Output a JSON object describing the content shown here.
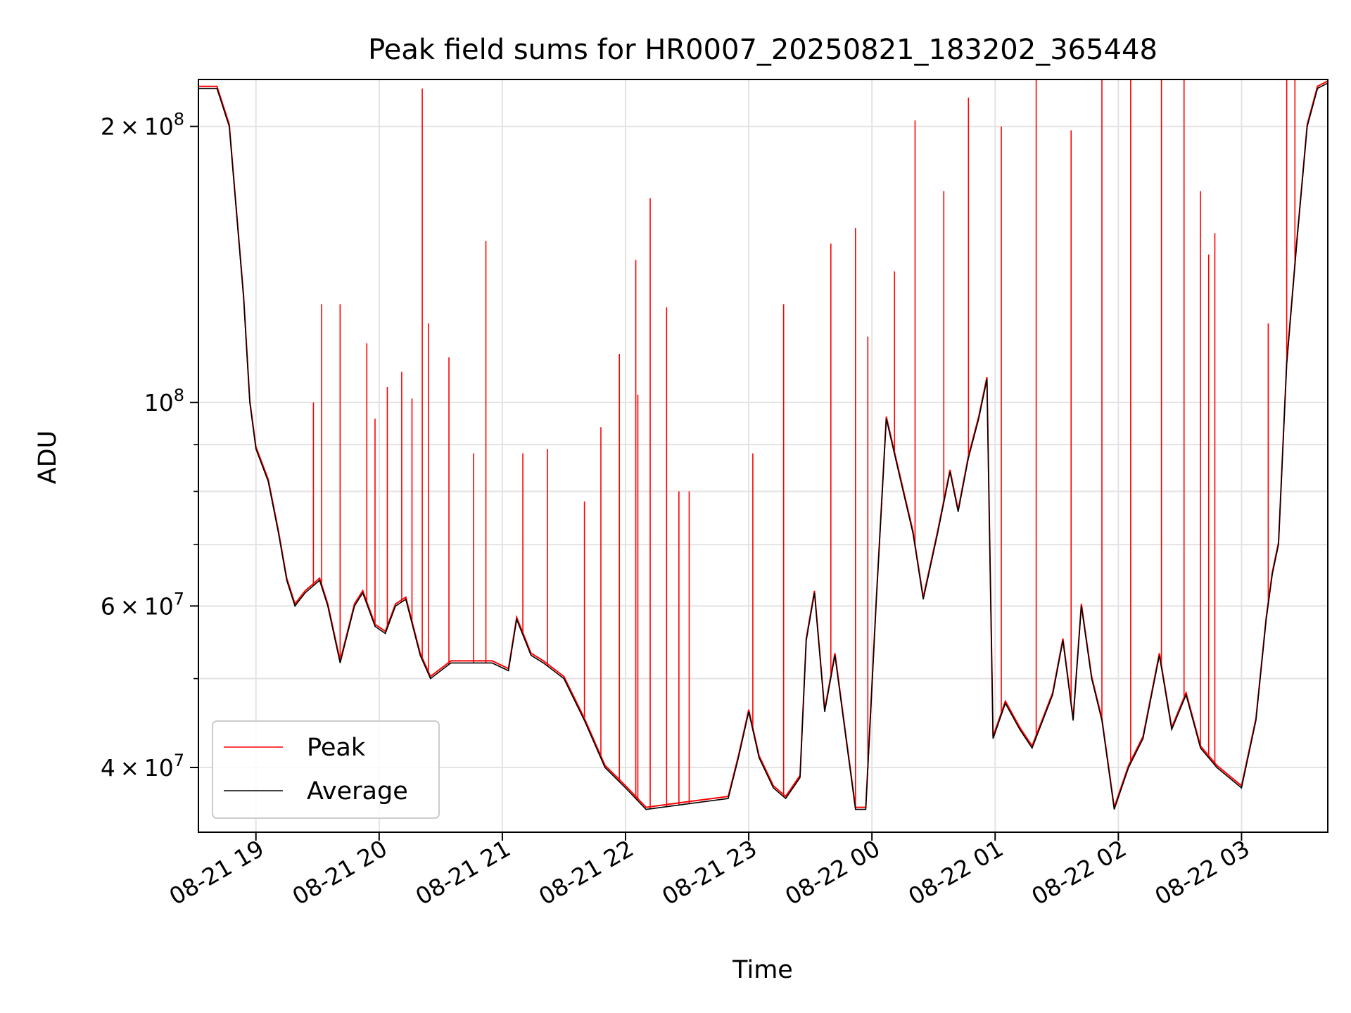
{
  "chart_data": {
    "type": "line",
    "title": "Peak field sums for HR0007_20250821_183202_365448",
    "xlabel": "Time",
    "ylabel": "ADU",
    "x_axis": {
      "type": "datetime",
      "range": [
        "2025-08-21T18:32",
        "2025-08-22T03:42"
      ],
      "ticks": [
        "2025-08-21T19:00",
        "2025-08-21T20:00",
        "2025-08-21T21:00",
        "2025-08-21T22:00",
        "2025-08-21T23:00",
        "2025-08-22T00:00",
        "2025-08-22T01:00",
        "2025-08-22T02:00",
        "2025-08-22T03:00"
      ],
      "tick_labels": [
        "08-21 19",
        "08-21 20",
        "08-21 21",
        "08-21 22",
        "08-21 23",
        "08-22 00",
        "08-22 01",
        "08-22 02",
        "08-22 03"
      ],
      "tick_label_rotation": 30
    },
    "y_axis": {
      "scale": "log",
      "range": [
        34000000,
        225000000
      ],
      "major_ticks": [
        {
          "value": 40000000,
          "base": "4",
          "exp": "7"
        },
        {
          "value": 60000000,
          "base": "6",
          "exp": "7"
        },
        {
          "value": 100000000,
          "base": "",
          "exp": "8"
        },
        {
          "value": 200000000,
          "base": "2",
          "exp": "8"
        }
      ],
      "minor_ticks": [
        50000000,
        70000000,
        80000000,
        90000000
      ]
    },
    "grid": true,
    "legend": {
      "position": "lower-left"
    },
    "series": [
      {
        "name": "Peak",
        "color": "#ff0000",
        "base": "Average",
        "spikes": [
          [
            "2025-08-21T19:28",
            100000000
          ],
          [
            "2025-08-21T19:32",
            128000000
          ],
          [
            "2025-08-21T19:41",
            128000000
          ],
          [
            "2025-08-21T19:54",
            116000000
          ],
          [
            "2025-08-21T19:58",
            96000000
          ],
          [
            "2025-08-21T20:04",
            104000000
          ],
          [
            "2025-08-21T20:11",
            108000000
          ],
          [
            "2025-08-21T20:16",
            101000000
          ],
          [
            "2025-08-21T20:21",
            220000000
          ],
          [
            "2025-08-21T20:24",
            122000000
          ],
          [
            "2025-08-21T20:34",
            112000000
          ],
          [
            "2025-08-21T20:46",
            88000000
          ],
          [
            "2025-08-21T20:52",
            150000000
          ],
          [
            "2025-08-21T21:10",
            88000000
          ],
          [
            "2025-08-21T21:22",
            89000000
          ],
          [
            "2025-08-21T21:40",
            78000000
          ],
          [
            "2025-08-21T21:48",
            94000000
          ],
          [
            "2025-08-21T21:57",
            113000000
          ],
          [
            "2025-08-21T22:05",
            143000000
          ],
          [
            "2025-08-21T22:06",
            102000000
          ],
          [
            "2025-08-21T22:12",
            167000000
          ],
          [
            "2025-08-21T22:20",
            127000000
          ],
          [
            "2025-08-21T22:26",
            80000000
          ],
          [
            "2025-08-21T22:31",
            80000000
          ],
          [
            "2025-08-21T23:02",
            88000000
          ],
          [
            "2025-08-21T23:17",
            128000000
          ],
          [
            "2025-08-21T23:40",
            149000000
          ],
          [
            "2025-08-21T23:52",
            155000000
          ],
          [
            "2025-08-21T23:58",
            118000000
          ],
          [
            "2025-08-22T00:11",
            139000000
          ],
          [
            "2025-08-22T00:21",
            203000000
          ],
          [
            "2025-08-22T00:35",
            170000000
          ],
          [
            "2025-08-22T00:47",
            215000000
          ],
          [
            "2025-08-22T01:03",
            200000000
          ],
          [
            "2025-08-22T01:20",
            225000000
          ],
          [
            "2025-08-22T01:37",
            198000000
          ],
          [
            "2025-08-22T01:52",
            225000000
          ],
          [
            "2025-08-22T02:06",
            225000000
          ],
          [
            "2025-08-22T02:21",
            225000000
          ],
          [
            "2025-08-22T02:32",
            225000000
          ],
          [
            "2025-08-22T02:40",
            170000000
          ],
          [
            "2025-08-22T02:44",
            145000000
          ],
          [
            "2025-08-22T02:47",
            153000000
          ],
          [
            "2025-08-22T03:13",
            122000000
          ],
          [
            "2025-08-22T03:22",
            225000000
          ],
          [
            "2025-08-22T03:26",
            225000000
          ]
        ]
      },
      {
        "name": "Average",
        "color": "#000000",
        "points": [
          [
            "2025-08-21T18:32",
            220000000
          ],
          [
            "2025-08-21T18:41",
            220000000
          ],
          [
            "2025-08-21T18:47",
            200000000
          ],
          [
            "2025-08-21T18:54",
            130000000
          ],
          [
            "2025-08-21T18:57",
            100000000
          ],
          [
            "2025-08-21T19:00",
            89000000
          ],
          [
            "2025-08-21T19:06",
            82000000
          ],
          [
            "2025-08-21T19:11",
            72000000
          ],
          [
            "2025-08-21T19:15",
            64000000
          ],
          [
            "2025-08-21T19:19",
            60000000
          ],
          [
            "2025-08-21T19:24",
            62000000
          ],
          [
            "2025-08-21T19:31",
            64000000
          ],
          [
            "2025-08-21T19:35",
            60000000
          ],
          [
            "2025-08-21T19:41",
            52000000
          ],
          [
            "2025-08-21T19:48",
            60000000
          ],
          [
            "2025-08-21T19:52",
            62000000
          ],
          [
            "2025-08-21T19:58",
            57000000
          ],
          [
            "2025-08-21T20:03",
            56000000
          ],
          [
            "2025-08-21T20:08",
            60000000
          ],
          [
            "2025-08-21T20:13",
            61000000
          ],
          [
            "2025-08-21T20:20",
            53000000
          ],
          [
            "2025-08-21T20:25",
            50000000
          ],
          [
            "2025-08-21T20:35",
            52000000
          ],
          [
            "2025-08-21T20:55",
            52000000
          ],
          [
            "2025-08-21T21:03",
            51000000
          ],
          [
            "2025-08-21T21:07",
            58000000
          ],
          [
            "2025-08-21T21:14",
            53000000
          ],
          [
            "2025-08-21T21:20",
            52000000
          ],
          [
            "2025-08-21T21:30",
            50000000
          ],
          [
            "2025-08-21T21:40",
            45000000
          ],
          [
            "2025-08-21T21:50",
            40000000
          ],
          [
            "2025-08-21T22:00",
            38000000
          ],
          [
            "2025-08-21T22:10",
            36000000
          ],
          [
            "2025-08-21T22:30",
            36500000
          ],
          [
            "2025-08-21T22:50",
            37000000
          ],
          [
            "2025-08-21T22:55",
            41000000
          ],
          [
            "2025-08-21T23:00",
            46000000
          ],
          [
            "2025-08-21T23:05",
            41000000
          ],
          [
            "2025-08-21T23:12",
            38000000
          ],
          [
            "2025-08-21T23:18",
            37000000
          ],
          [
            "2025-08-21T23:25",
            39000000
          ],
          [
            "2025-08-21T23:28",
            55000000
          ],
          [
            "2025-08-21T23:32",
            62000000
          ],
          [
            "2025-08-21T23:37",
            46000000
          ],
          [
            "2025-08-21T23:42",
            53000000
          ],
          [
            "2025-08-21T23:48",
            42000000
          ],
          [
            "2025-08-21T23:52",
            36000000
          ],
          [
            "2025-08-21T23:57",
            36000000
          ],
          [
            "2025-08-22T00:02",
            60000000
          ],
          [
            "2025-08-22T00:07",
            96000000
          ],
          [
            "2025-08-22T00:13",
            84000000
          ],
          [
            "2025-08-22T00:20",
            72000000
          ],
          [
            "2025-08-22T00:25",
            61000000
          ],
          [
            "2025-08-22T00:32",
            72000000
          ],
          [
            "2025-08-22T00:38",
            84000000
          ],
          [
            "2025-08-22T00:42",
            76000000
          ],
          [
            "2025-08-22T00:47",
            87000000
          ],
          [
            "2025-08-22T00:52",
            96000000
          ],
          [
            "2025-08-22T00:56",
            106000000
          ],
          [
            "2025-08-22T00:59",
            43000000
          ],
          [
            "2025-08-22T01:05",
            47000000
          ],
          [
            "2025-08-22T01:12",
            44000000
          ],
          [
            "2025-08-22T01:18",
            42000000
          ],
          [
            "2025-08-22T01:28",
            48000000
          ],
          [
            "2025-08-22T01:33",
            55000000
          ],
          [
            "2025-08-22T01:38",
            45000000
          ],
          [
            "2025-08-22T01:42",
            60000000
          ],
          [
            "2025-08-22T01:47",
            50000000
          ],
          [
            "2025-08-22T01:52",
            45000000
          ],
          [
            "2025-08-22T01:58",
            36000000
          ],
          [
            "2025-08-22T02:05",
            40000000
          ],
          [
            "2025-08-22T02:12",
            43000000
          ],
          [
            "2025-08-22T02:20",
            53000000
          ],
          [
            "2025-08-22T02:26",
            44000000
          ],
          [
            "2025-08-22T02:33",
            48000000
          ],
          [
            "2025-08-22T02:40",
            42000000
          ],
          [
            "2025-08-22T02:48",
            40000000
          ],
          [
            "2025-08-22T03:00",
            38000000
          ],
          [
            "2025-08-22T03:07",
            45000000
          ],
          [
            "2025-08-22T03:12",
            58000000
          ],
          [
            "2025-08-22T03:15",
            65000000
          ],
          [
            "2025-08-22T03:18",
            70000000
          ],
          [
            "2025-08-22T03:22",
            110000000
          ],
          [
            "2025-08-22T03:27",
            150000000
          ],
          [
            "2025-08-22T03:32",
            200000000
          ],
          [
            "2025-08-22T03:37",
            220000000
          ],
          [
            "2025-08-22T03:42",
            223000000
          ]
        ]
      }
    ]
  }
}
